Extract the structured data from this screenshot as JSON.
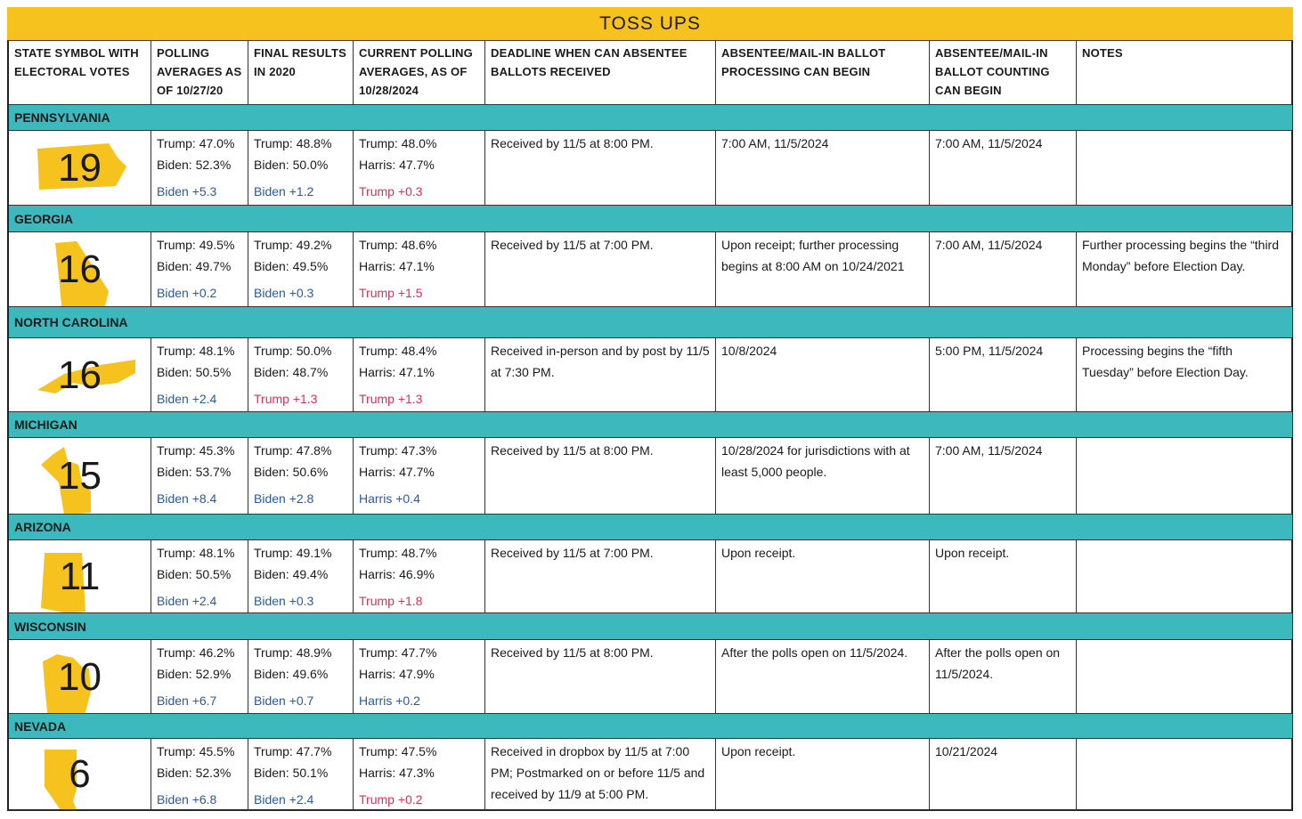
{
  "title": "TOSS UPS",
  "header": [
    "STATE SYMBOL WITH ELECTORAL VOTES",
    "POLLING AVERAGES AS OF 10/27/20",
    "FINAL RESULTS IN 2020",
    "CURRENT POLLING AVERAGES, AS OF 10/28/2024",
    "DEADLINE WHEN CAN ABSENTEE BALLOTS RECEIVED",
    "ABSENTEE/MAIL-IN BALLOT PROCESSING CAN BEGIN",
    "ABSENTEE/MAIL-IN BALLOT COUNTING CAN BEGIN",
    "NOTES"
  ],
  "rows": [
    {
      "state": "PENNSYLVANIA",
      "electoral_votes": "19",
      "polls": [
        {
          "lines": [
            "Trump: 47.0%",
            "Biden: 52.3%"
          ],
          "margin": {
            "text": "Biden +5.3",
            "color": "#2b5a9a"
          }
        },
        {
          "lines": [
            "Trump: 48.8%",
            "Biden: 50.0%"
          ],
          "margin": {
            "text": "Biden +1.2",
            "color": "#2b5a9a"
          }
        },
        {
          "lines": [
            "Trump: 48.0%",
            "Harris: 47.7%"
          ],
          "margin": {
            "text": "Trump +0.3",
            "color": "#d6335a"
          }
        }
      ],
      "deadline": "Received by 11/5 at 8:00 PM.",
      "processing": "7:00 AM,  11/5/2024",
      "counting": "7:00 AM, 11/5/2024"
    },
    {
      "state": "GEORGIA",
      "electoral_votes": "16",
      "polls": [
        {
          "lines": [
            "Trump: 49.5%",
            "Biden: 49.7%"
          ],
          "margin": {
            "text": "Biden +0.2",
            "color": "#2b5a9a"
          }
        },
        {
          "lines": [
            "Trump: 49.2%",
            "Biden: 49.5%"
          ],
          "margin": {
            "text": "Biden +0.3",
            "color": "#2b5a9a"
          }
        },
        {
          "lines": [
            "Trump: 48.6%",
            "Harris: 47.1%"
          ],
          "margin": {
            "text": "Trump +1.5",
            "color": "#d6335a"
          }
        }
      ],
      "deadline": "Received by 11/5 at 7:00 PM.",
      "processing": "Upon receipt; further processing begins at 8:00 AM on 10/24/2021",
      "counting": "7:00 AM, 11/5/2024",
      "notes": "Further processing begins the “third Monday” before Election Day."
    },
    {
      "state": "NORTH CAROLINA",
      "electoral_votes": "16",
      "polls": [
        {
          "lines": [
            "Trump: 48.1%",
            "Biden: 50.5%"
          ],
          "margin": {
            "text": "Biden +2.4",
            "color": "#2b5a9a"
          }
        },
        {
          "lines": [
            "Trump: 50.0%",
            "Biden: 48.7%"
          ],
          "margin": {
            "text": "Trump +1.3",
            "color": "#d6335a"
          }
        },
        {
          "lines": [
            "Trump: 48.4%",
            "Harris: 47.1%"
          ],
          "margin": {
            "text": "Trump +1.3",
            "color": "#d6335a"
          }
        }
      ],
      "deadline": "Received in-person and by post by 11/5 at 7:30 PM.",
      "processing": "10/8/2024",
      "counting": "5:00 PM, 11/5/2024",
      "notes": "Processing begins the “fifth Tuesday” before Election Day."
    },
    {
      "state": "MICHIGAN",
      "electoral_votes": "15",
      "polls": [
        {
          "lines": [
            "Trump: 45.3%",
            "Biden: 53.7%"
          ],
          "margin": {
            "text": "Biden +8.4",
            "color": "#2b5a9a"
          }
        },
        {
          "lines": [
            "Trump: 47.8%",
            "Biden: 50.6%"
          ],
          "margin": {
            "text": "Biden +2.8",
            "color": "#2b5a9a"
          }
        },
        {
          "lines": [
            "Trump: 47.3%",
            "Harris: 47.7%"
          ],
          "margin": {
            "text": "Harris +0.4",
            "color": "#2b5a9a"
          }
        }
      ],
      "deadline": "Received by 11/5 at 8:00 PM.",
      "processing": "10/28/2024 for jurisdictions with at least 5,000 people.",
      "counting": "7:00 AM, 11/5/2024"
    },
    {
      "state": "ARIZONA",
      "electoral_votes": "11",
      "polls": [
        {
          "lines": [
            "Trump: 48.1%",
            "Biden: 50.5%"
          ],
          "margin": {
            "text": "Biden +2.4",
            "color": "#2b5a9a"
          }
        },
        {
          "lines": [
            "Trump: 49.1%",
            "Biden: 49.4%"
          ],
          "margin": {
            "text": "Biden +0.3",
            "color": "#2b5a9a"
          }
        },
        {
          "lines": [
            "Trump: 48.7%",
            "Harris: 46.9%"
          ],
          "margin": {
            "text": "Trump +1.8",
            "color": "#d6335a"
          }
        }
      ],
      "deadline": "Received by 11/5 at 7:00 PM.",
      "processing": "Upon receipt.",
      "counting": "Upon receipt."
    },
    {
      "state": "WISCONSIN",
      "electoral_votes": "10",
      "polls": [
        {
          "lines": [
            "Trump: 46.2%",
            "Biden: 52.9%"
          ],
          "margin": {
            "text": "Biden +6.7",
            "color": "#2b5a9a"
          }
        },
        {
          "lines": [
            "Trump: 48.9%",
            "Biden: 49.6%"
          ],
          "margin": {
            "text": "Biden +0.7",
            "color": "#2b5a9a"
          }
        },
        {
          "lines": [
            "Trump: 47.7%",
            "Harris: 47.9%"
          ],
          "margin": {
            "text": "Harris +0.2",
            "color": "#2b5a9a"
          }
        }
      ],
      "deadline": "Received by 11/5 at 8:00 PM.",
      "processing": "After the polls open on 11/5/2024.",
      "counting": "After the polls open on 11/5/2024."
    },
    {
      "state": "NEVADA",
      "electoral_votes": "6",
      "polls": [
        {
          "lines": [
            "Trump: 45.5%",
            "Biden: 52.3%"
          ],
          "margin": {
            "text": "Biden +6.8",
            "color": "#2b5a9a"
          }
        },
        {
          "lines": [
            "Trump: 47.7%",
            "Biden: 50.1%"
          ],
          "margin": {
            "text": "Biden +2.4",
            "color": "#2b5a9a"
          }
        },
        {
          "lines": [
            "Trump: 47.5%",
            "Harris: 47.3%"
          ],
          "margin": {
            "text": "Trump +0.2",
            "color": "#d6335a"
          }
        }
      ],
      "deadline": "Received in dropbox by 11/5 at 7:00 PM; Postmarked on or before 11/5 and received by 11/9 at 5:00 PM.",
      "processing": "Upon receipt.",
      "counting": "10/21/2024"
    }
  ]
}
